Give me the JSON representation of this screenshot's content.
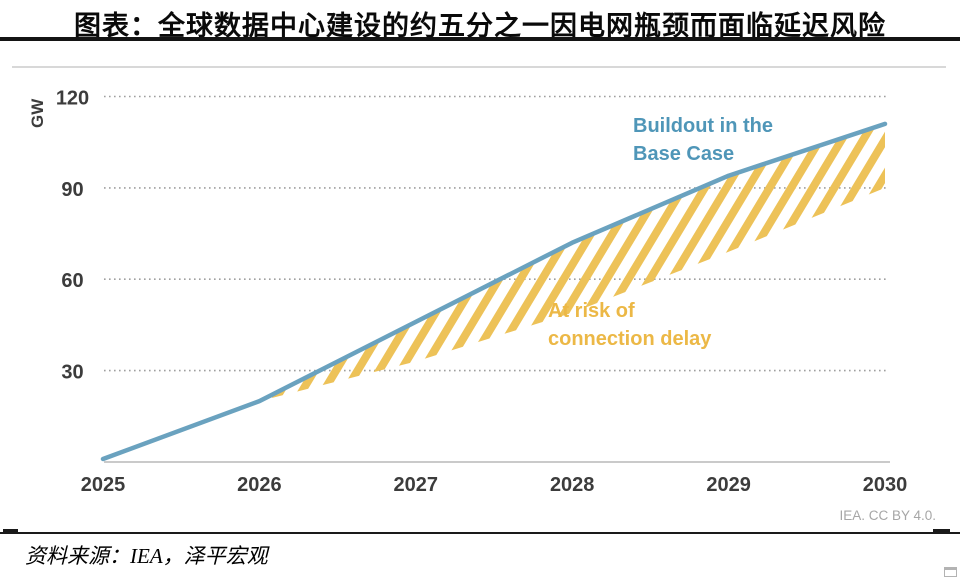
{
  "header": {
    "title": "图表：全球数据中心建设的约五分之一因电网瓶颈而面临延迟风险"
  },
  "footer": {
    "source": "资料来源：IEA，泽平宏观"
  },
  "colors": {
    "line_blue": "#6aa2bf",
    "label_blue": "#4f96b8",
    "gold": "#edc258",
    "gold_label": "#ecb846",
    "grid_gray": "#9e9e9e",
    "axis_text": "#3c3c3c",
    "axis_line": "#b8b8b8",
    "attribution_gray": "#a6a6a6",
    "top_border_gray": "#d8d8d8"
  },
  "chart_data": {
    "type": "line-area",
    "x": [
      2025,
      2026,
      2027,
      2028,
      2029,
      2030
    ],
    "xticks": [
      "2025",
      "2026",
      "2027",
      "2028",
      "2029",
      "2030"
    ],
    "ylabel": "GW",
    "ylim": [
      0,
      130
    ],
    "yticks": [
      120,
      90,
      60,
      30
    ],
    "grid": "dotted-horizontal",
    "legend": "inline-annotations",
    "series": [
      {
        "name": "Buildout in the Base Case",
        "kind": "line",
        "values": [
          1,
          20,
          46,
          72,
          94,
          111
        ]
      },
      {
        "name": "Lower edge of at-risk hatched band",
        "kind": "boundary",
        "values": [
          1,
          20,
          33,
          49,
          69,
          90
        ]
      }
    ],
    "band": {
      "label": "At risk of connection delay",
      "style": "gold-diagonal-hatch",
      "from_x": 2026,
      "to_x": 2030
    },
    "annotations": [
      {
        "lines": [
          "Buildout in the",
          "Base Case"
        ],
        "color_role": "blue"
      },
      {
        "lines": [
          "At risk of",
          "connection delay"
        ],
        "color_role": "gold"
      }
    ],
    "attribution": "IEA. CC BY 4.0."
  }
}
